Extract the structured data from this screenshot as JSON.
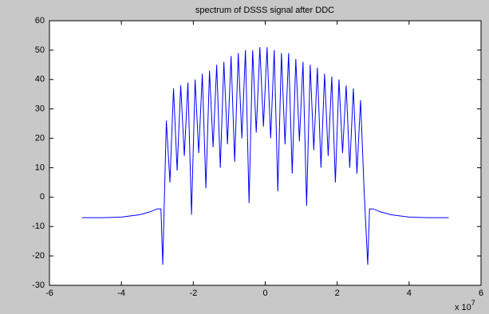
{
  "chart_data": {
    "type": "line",
    "title": "spectrum of DSSS signal after DDC",
    "x_multiplier": {
      "base": "x 10",
      "exponent": "7"
    },
    "x": [
      -5.1,
      -4.5,
      -4,
      -3.5,
      -3.2,
      -3.0,
      -2.9,
      -2.85,
      -2.75,
      -2.65,
      -2.55,
      -2.45,
      -2.35,
      -2.25,
      -2.15,
      -2.05,
      -1.95,
      -1.85,
      -1.75,
      -1.65,
      -1.55,
      -1.45,
      -1.35,
      -1.25,
      -1.15,
      -1.05,
      -0.95,
      -0.85,
      -0.75,
      -0.65,
      -0.55,
      -0.45,
      -0.35,
      -0.25,
      -0.15,
      -0.05,
      0.05,
      0.15,
      0.25,
      0.35,
      0.45,
      0.55,
      0.65,
      0.75,
      0.85,
      0.95,
      1.05,
      1.15,
      1.25,
      1.35,
      1.45,
      1.55,
      1.65,
      1.75,
      1.85,
      1.95,
      2.05,
      2.15,
      2.25,
      2.35,
      2.45,
      2.55,
      2.65,
      2.75,
      2.85,
      2.9,
      3.0,
      3.2,
      3.5,
      4,
      4.5,
      5.1
    ],
    "series": [
      {
        "color": "#0000ff",
        "values": [
          -7,
          -7,
          -6.8,
          -6,
          -5,
          -4,
          -4,
          -23,
          26,
          5,
          37,
          9,
          38,
          14,
          39,
          -6,
          40,
          15,
          42,
          3,
          43,
          17,
          45,
          10,
          46,
          18,
          48,
          12,
          49,
          20,
          50,
          -2,
          50,
          22,
          51,
          24,
          51,
          20,
          50,
          2,
          49,
          18,
          49,
          8,
          47,
          19,
          46,
          -3,
          45,
          16,
          44,
          10,
          42,
          14,
          41,
          5,
          40,
          15,
          38,
          10,
          37,
          8,
          33,
          2,
          -23,
          -4,
          -4,
          -5,
          -6,
          -6.8,
          -7,
          -7
        ]
      }
    ],
    "xlim": [
      -6,
      6
    ],
    "xticks": [
      -6,
      -4,
      -2,
      0,
      2,
      4,
      6
    ],
    "ylim": [
      -30,
      60
    ],
    "yticks": [
      -30,
      -20,
      -10,
      0,
      10,
      20,
      30,
      40,
      50,
      60
    ]
  }
}
